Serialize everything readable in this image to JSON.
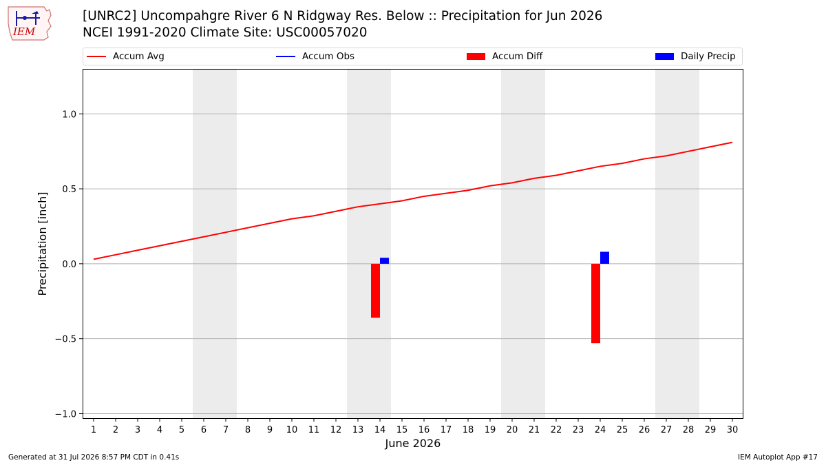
{
  "logo": {
    "text": "IEM"
  },
  "title": {
    "line1": "[UNRC2] Uncompahgre River 6 N Ridgway Res. Below :: Precipitation for Jun 2026",
    "line2": "NCEI 1991-2020 Climate Site: USC00057020"
  },
  "legend": [
    {
      "label": "Accum Avg",
      "kind": "line",
      "color": "#ff0000"
    },
    {
      "label": "Accum Obs",
      "kind": "line",
      "color": "#0000ff"
    },
    {
      "label": "Accum Diff",
      "kind": "box",
      "color": "#ff0000"
    },
    {
      "label": "Daily Precip",
      "kind": "box",
      "color": "#0000ff"
    }
  ],
  "chart_data": {
    "type": "bar",
    "xlabel": "June 2026",
    "ylabel": "Precipitation [inch]",
    "x": [
      1,
      2,
      3,
      4,
      5,
      6,
      7,
      8,
      9,
      10,
      11,
      12,
      13,
      14,
      15,
      16,
      17,
      18,
      19,
      20,
      21,
      22,
      23,
      24,
      25,
      26,
      27,
      28,
      29,
      30
    ],
    "ylim": [
      -1.03,
      1.3
    ],
    "yticks": [
      -1.0,
      -0.5,
      0.0,
      0.5,
      1.0
    ],
    "ytick_labels": [
      "−1.0",
      "−0.5",
      "0.0",
      "0.5",
      "1.0"
    ],
    "grid": "horizontal",
    "weekend_shading": [
      [
        6,
        7
      ],
      [
        13,
        14
      ],
      [
        20,
        21
      ],
      [
        27,
        28
      ]
    ],
    "series": [
      {
        "name": "Accum Avg",
        "type": "line",
        "color": "#ff0000",
        "values": [
          0.03,
          0.06,
          0.09,
          0.12,
          0.15,
          0.18,
          0.21,
          0.24,
          0.27,
          0.3,
          0.32,
          0.35,
          0.38,
          0.4,
          0.42,
          0.45,
          0.47,
          0.49,
          0.52,
          0.54,
          0.57,
          0.59,
          0.62,
          0.65,
          0.67,
          0.7,
          0.72,
          0.75,
          0.78,
          0.81
        ]
      },
      {
        "name": "Accum Diff",
        "type": "bar",
        "color": "#ff0000",
        "points": [
          {
            "x": 14,
            "y": -0.36
          },
          {
            "x": 24,
            "y": -0.53
          }
        ]
      },
      {
        "name": "Daily Precip",
        "type": "bar",
        "color": "#0000ff",
        "points": [
          {
            "x": 14,
            "y": 0.04
          },
          {
            "x": 24,
            "y": 0.08
          }
        ]
      }
    ]
  },
  "footer": {
    "left": "Generated at 31 Jul 2026 8:57 PM CDT in 0.41s",
    "right": "IEM Autoplot App #17"
  }
}
